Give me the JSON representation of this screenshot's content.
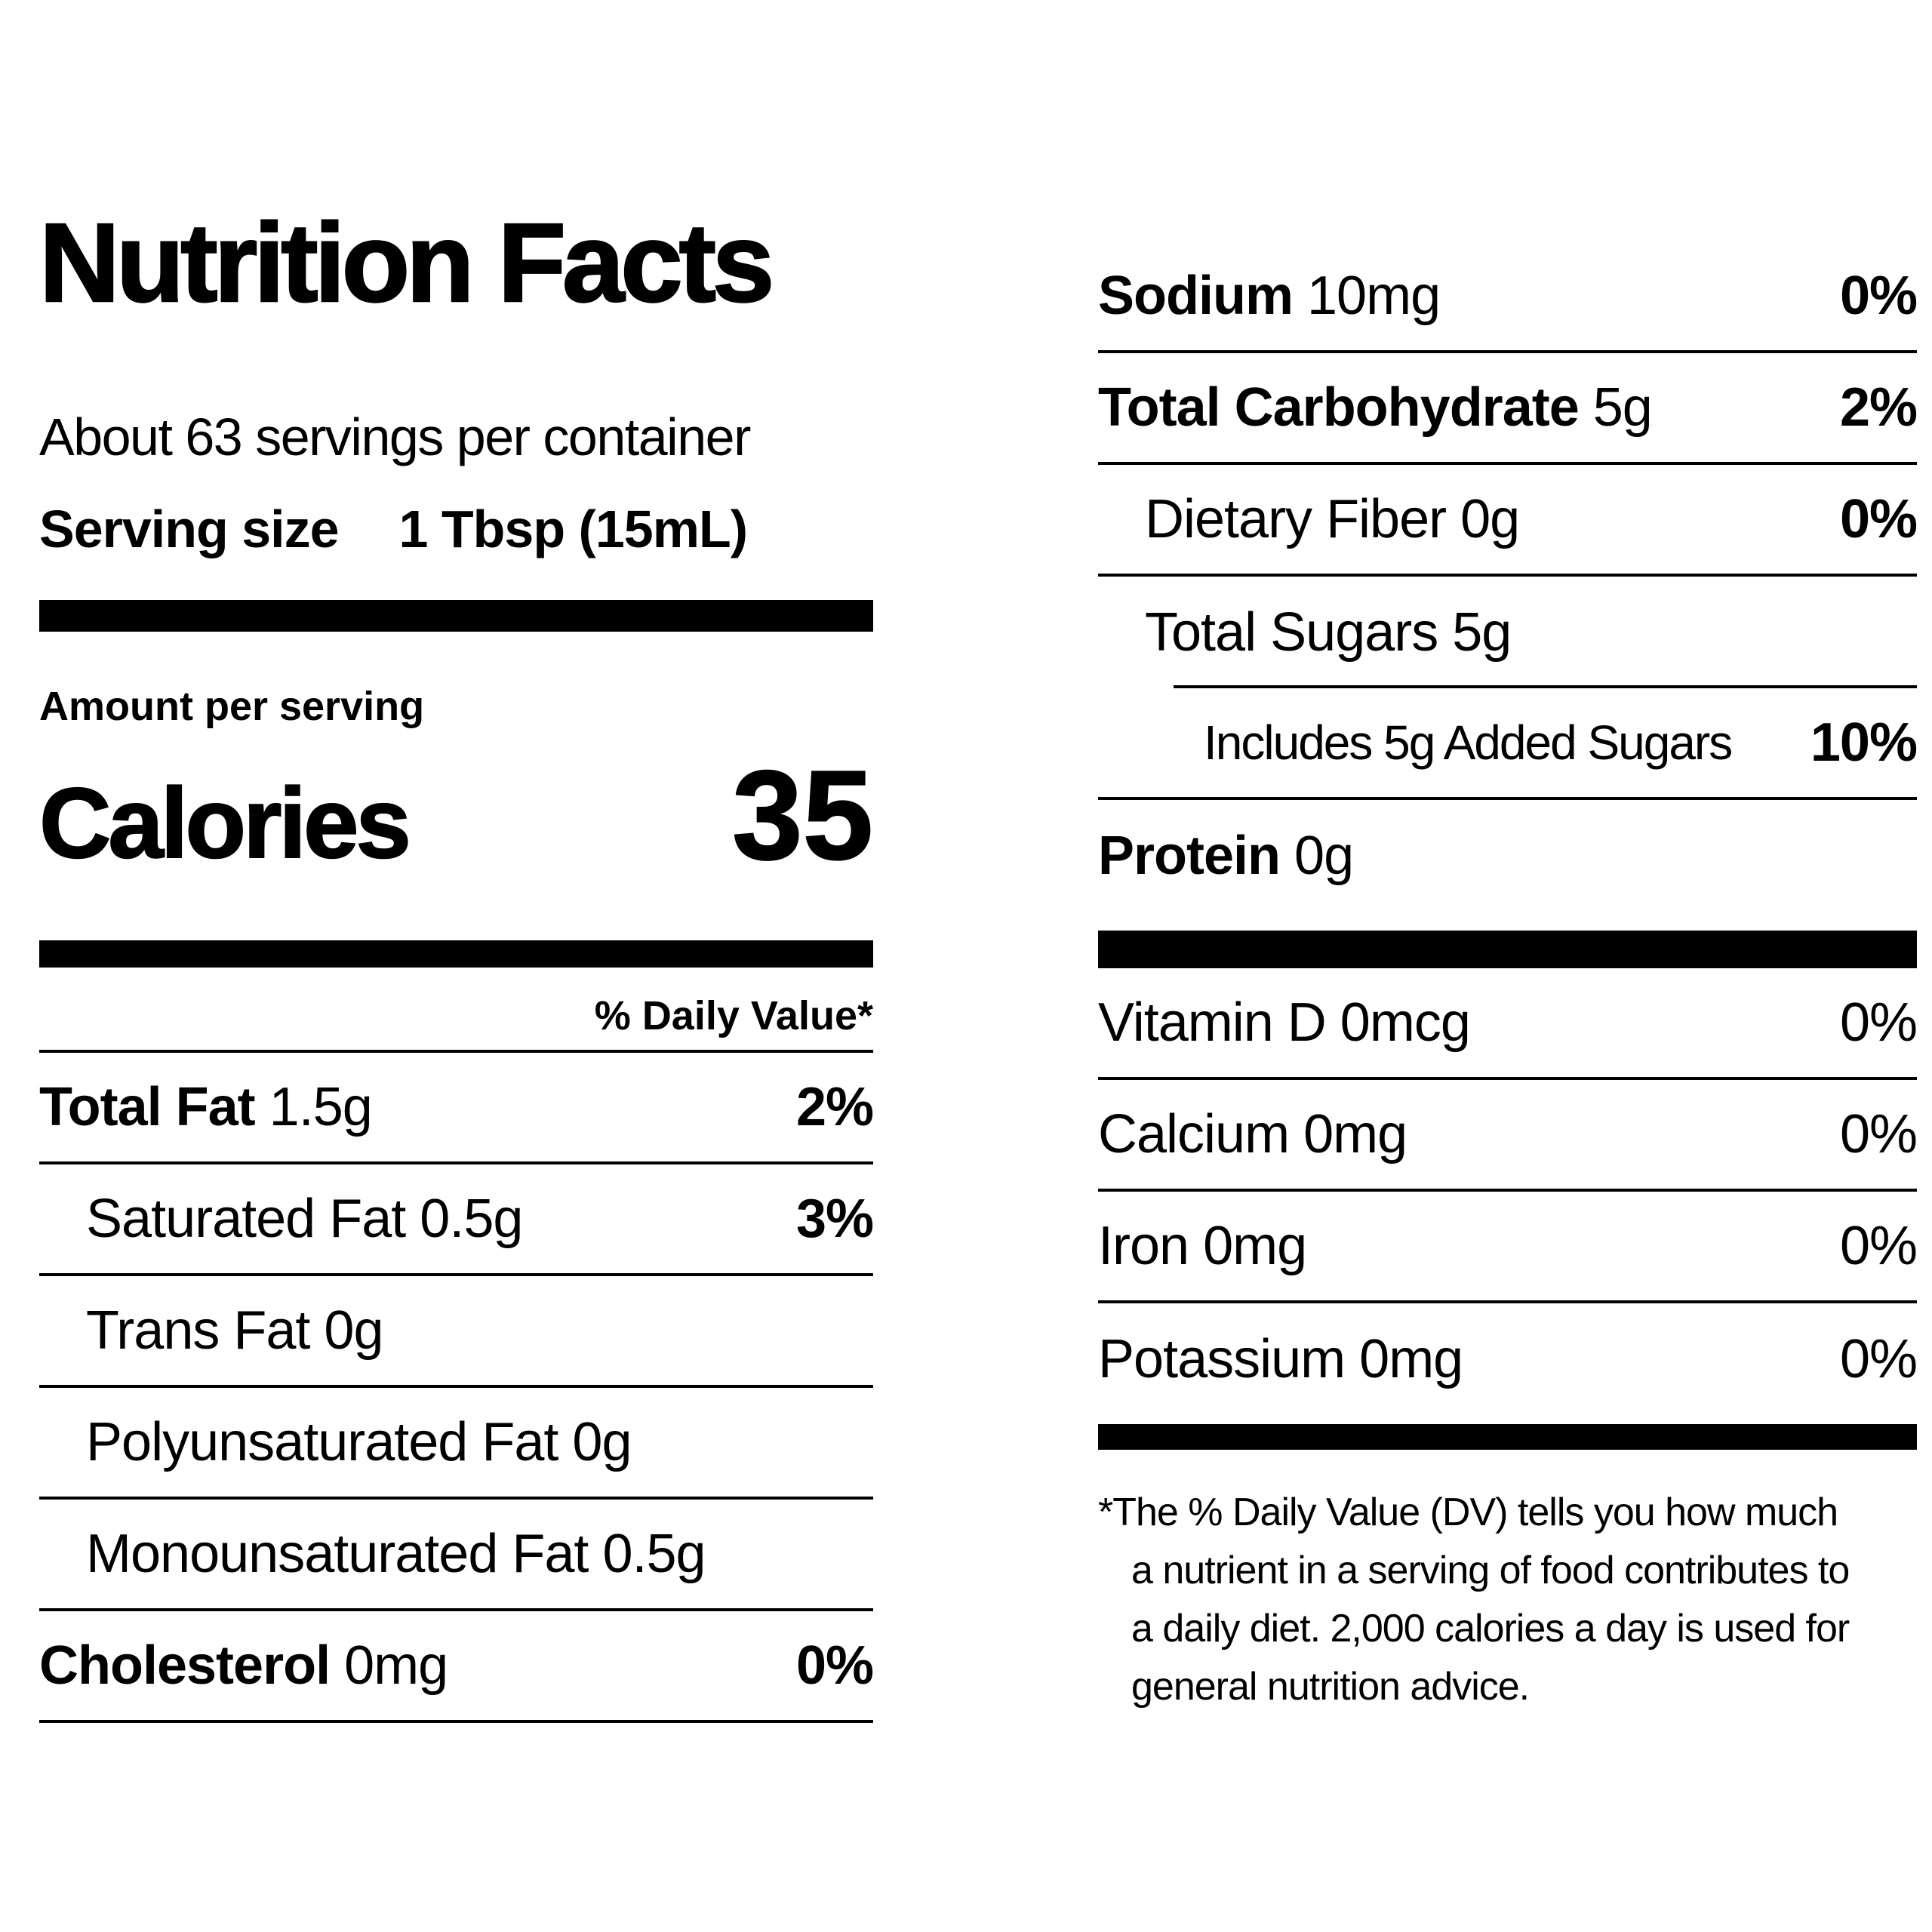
{
  "label": {
    "title": "Nutrition Facts",
    "servings_per_container": "About 63 servings per container",
    "serving_size": {
      "label": "Serving size",
      "value": "1 Tbsp (15mL)"
    },
    "amount_per_serving": "Amount per serving",
    "calories": {
      "label": "Calories",
      "value": "35"
    },
    "daily_value_header": "% Daily Value*",
    "left_rows": [
      {
        "name": "Total Fat",
        "amount": "1.5g",
        "dv": "2%"
      },
      {
        "name": "Saturated Fat",
        "amount": "0.5g",
        "dv": "3%"
      },
      {
        "name": "Trans Fat",
        "amount": "0g",
        "dv": ""
      },
      {
        "name": "Polyunsaturated Fat",
        "amount": "0g",
        "dv": ""
      },
      {
        "name": "Monounsaturated Fat",
        "amount": "0.5g",
        "dv": ""
      },
      {
        "name": "Cholesterol",
        "amount": "0mg",
        "dv": "0%"
      }
    ],
    "right_rows": [
      {
        "name": "Sodium",
        "amount": "10mg",
        "dv": "0%"
      },
      {
        "name": "Total Carbohydrate",
        "amount": "5g",
        "dv": "2%"
      },
      {
        "name": "Dietary Fiber",
        "amount": "0g",
        "dv": "0%"
      },
      {
        "name": "Total Sugars",
        "amount": "5g",
        "dv": ""
      },
      {
        "name": "Includes 5g Added Sugars",
        "amount": "",
        "dv": "10%"
      },
      {
        "name": "Protein",
        "amount": "0g",
        "dv": ""
      }
    ],
    "vitamin_rows": [
      {
        "name": "Vitamin D",
        "amount": "0mcg",
        "dv": "0%"
      },
      {
        "name": "Calcium",
        "amount": "0mg",
        "dv": "0%"
      },
      {
        "name": "Iron",
        "amount": "0mg",
        "dv": "0%"
      },
      {
        "name": "Potassium",
        "amount": "0mg",
        "dv": "0%"
      }
    ],
    "footnote": "*The % Daily Value (DV) tells you how much a nutrient in a serving of food contributes to a daily diet. 2,000 calories a day is used for general nutrition advice.",
    "colors": {
      "text": "#000000",
      "background": "#ffffff"
    }
  }
}
